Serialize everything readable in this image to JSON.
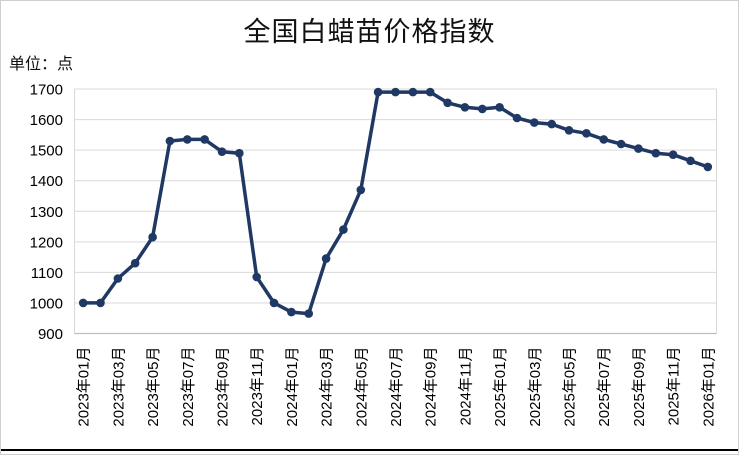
{
  "header": {
    "title": "全国白蜡苗价格指数",
    "unit_label": "单位：点"
  },
  "chart_data": {
    "type": "line",
    "title": "全国白蜡苗价格指数",
    "ylabel": "点",
    "xlabel": "",
    "x_labels": [
      "2023年01月",
      "2023年02月",
      "2023年03月",
      "2023年04月",
      "2023年05月",
      "2023年06月",
      "2023年07月",
      "2023年08月",
      "2023年09月",
      "2023年10月",
      "2023年11月",
      "2023年12月",
      "2024年01月",
      "2024年02月",
      "2024年03月",
      "2024年04月",
      "2024年05月",
      "2024年06月",
      "2024年07月",
      "2024年08月",
      "2024年09月",
      "2024年10月",
      "2024年11月",
      "2024年12月",
      "2025年01月",
      "2025年02月",
      "2025年03月",
      "2025年04月",
      "2025年05月",
      "2025年06月",
      "2025年07月",
      "2025年08月",
      "2025年09月",
      "2025年10月",
      "2025年11月",
      "2025年12月",
      "2026年01月"
    ],
    "x_tick_step": 2,
    "values": [
      1000,
      1000,
      1080,
      1130,
      1215,
      1530,
      1535,
      1535,
      1495,
      1490,
      1085,
      1000,
      970,
      965,
      1145,
      1240,
      1370,
      1690,
      1690,
      1690,
      1690,
      1655,
      1640,
      1635,
      1640,
      1605,
      1590,
      1585,
      1565,
      1555,
      1535,
      1520,
      1505,
      1490,
      1485,
      1465,
      1445
    ],
    "ylim": [
      900,
      1700
    ],
    "y_tick_interval": 100,
    "y_ticks": [
      900,
      1000,
      1100,
      1200,
      1300,
      1400,
      1500,
      1600,
      1700
    ],
    "grid": true,
    "legend_position": "none",
    "line_color": "#1f3864",
    "marker": "circle",
    "gridline_color": "#d9d9d9",
    "axis_line_color": "#bfbfbf",
    "label_color": "#000000"
  }
}
